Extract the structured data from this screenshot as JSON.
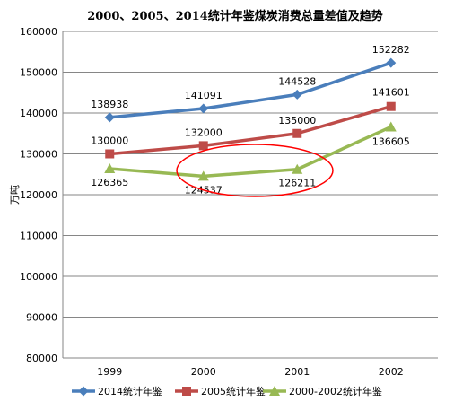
{
  "chart_data": {
    "type": "line",
    "title": "2000、2005、2014统计年鉴煤炭消费总量差值及趋势",
    "ylabel": "万吨",
    "xlabel": "",
    "categories": [
      "1999",
      "2000",
      "2001",
      "2002"
    ],
    "ylim": [
      80000,
      160000
    ],
    "yticks": [
      80000,
      90000,
      100000,
      110000,
      120000,
      130000,
      140000,
      150000,
      160000
    ],
    "grid": "horizontal",
    "legend_position": "bottom",
    "series": [
      {
        "name": "2014统计年鉴",
        "values": [
          138938,
          141091,
          144528,
          152282
        ],
        "color": "#4a7ebb",
        "marker": "diamond"
      },
      {
        "name": "2005统计年鉴",
        "values": [
          130000,
          132000,
          135000,
          141601
        ],
        "color": "#be4b48",
        "marker": "square"
      },
      {
        "name": "2000-2002统计年鉴",
        "values": [
          126365,
          124537,
          126211,
          136605
        ],
        "color": "#98b954",
        "marker": "triangle"
      }
    ],
    "annotation": {
      "shape": "ellipse",
      "color": "#ff0000",
      "around_categories": [
        "2000",
        "2001"
      ],
      "series_index": 2
    }
  }
}
